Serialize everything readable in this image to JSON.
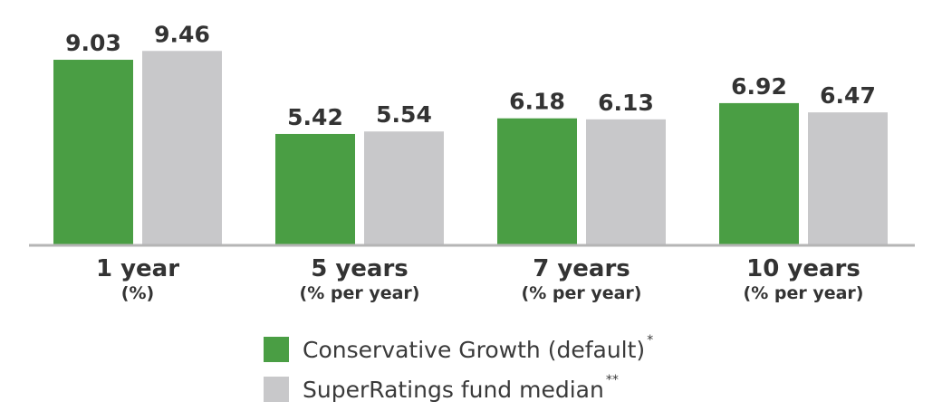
{
  "chart_data": {
    "type": "bar",
    "categories": [
      "1 year",
      "5 years",
      "7 years",
      "10 years"
    ],
    "category_sublabels": [
      "(%)",
      "(% per year)",
      "(% per year)",
      "(% per year)"
    ],
    "series": [
      {
        "name": "Conservative Growth (default)",
        "marker": "*",
        "color": "#4a9e44",
        "values": [
          9.03,
          5.42,
          6.18,
          6.92
        ],
        "labels": [
          "9.03",
          "5.42",
          "6.18",
          "6.92"
        ]
      },
      {
        "name": "SuperRatings fund median",
        "marker": "**",
        "color": "#c8c8ca",
        "values": [
          9.46,
          5.54,
          6.13,
          6.47
        ],
        "labels": [
          "9.46",
          "5.54",
          "6.13",
          "6.47"
        ]
      }
    ],
    "ylim": [
      0,
      10
    ],
    "grid": false,
    "legend_position": "bottom",
    "axis_color": "#b5b5b5"
  }
}
